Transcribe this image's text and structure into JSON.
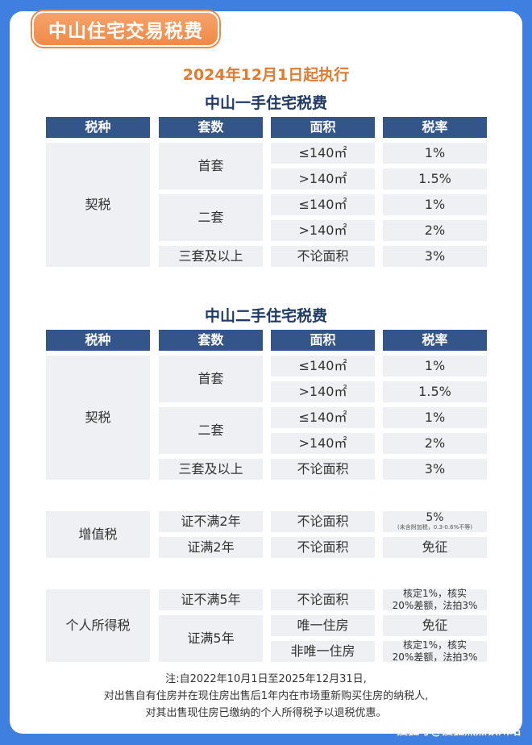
{
  "header": {
    "title": "中山住宅交易税费"
  },
  "effective_date": "2024年12月1日起执行",
  "col_headers": [
    "税种",
    "套数",
    "面积",
    "税率"
  ],
  "section1": {
    "title": "中山一手住宅税费",
    "tax": "契税",
    "tiers": [
      "首套",
      "二套",
      "三套及以上"
    ],
    "areas": [
      "≤140㎡",
      ">140㎡",
      "≤140㎡",
      ">140㎡",
      "不论面积"
    ],
    "rates": [
      "1%",
      "1.5%",
      "1%",
      "2%",
      "3%"
    ]
  },
  "section2": {
    "title": "中山二手住宅税费",
    "deed": {
      "tax": "契税",
      "tiers": [
        "首套",
        "二套",
        "三套及以上"
      ],
      "areas": [
        "≤140㎡",
        ">140㎡",
        "≤140㎡",
        ">140㎡",
        "不论面积"
      ],
      "rates": [
        "1%",
        "1.5%",
        "1%",
        "2%",
        "3%"
      ]
    },
    "vat": {
      "tax": "增值税",
      "rows": [
        {
          "term": "证不满2年",
          "area": "不论面积",
          "rate": "5%",
          "rate_note": "(未含附加税，0.3-0.6%不等)"
        },
        {
          "term": "证满2年",
          "area": "不论面积",
          "rate": "免征"
        }
      ]
    },
    "income": {
      "tax": "个人所得税",
      "rows": [
        {
          "term": "证不满5年",
          "area": "不论面积",
          "rate_line1": "核定1%，核实",
          "rate_line2": "20%差额，法拍3%"
        },
        {
          "term": "证满5年",
          "area": "唯一住房",
          "rate": "免征"
        },
        {
          "area": "非唯一住房",
          "rate_line1": "核定1%，核实",
          "rate_line2": "20%差额，法拍3%"
        }
      ]
    }
  },
  "note": {
    "line1": "注:自2022年10月1日至2025年12月31日,",
    "line2": "对出售自有住房并在现住房出售后1年内在市场重新购买住房的纳税人,",
    "line3": "对其出售现住房已缴纳的个人所得税予以退税优惠。"
  },
  "watermark": "搜狐号@搜狐焦点钦州站"
}
